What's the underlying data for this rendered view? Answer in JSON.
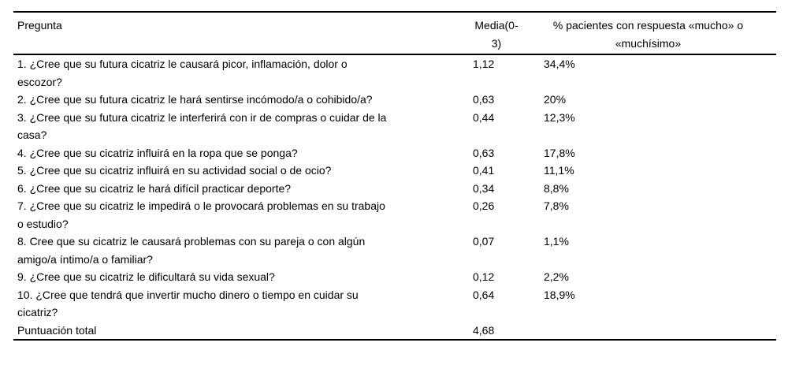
{
  "meta": {
    "background_color": "#ffffff",
    "text_color": "#000000",
    "rule_color": "#000000"
  },
  "table": {
    "columns": [
      {
        "id": "pregunta",
        "label": "Pregunta"
      },
      {
        "id": "media",
        "label": "Media(0-3)"
      },
      {
        "id": "pct_mucho",
        "label": "% pacientes con respuesta «mucho» o «muchísimo»"
      }
    ],
    "rows": [
      {
        "pregunta_lines": [
          "1. ¿Cree que su futura cicatriz le causará picor, inflamación, dolor o",
          "escozor?"
        ],
        "media": "1,12",
        "pct": "34,4%"
      },
      {
        "pregunta_lines": [
          "2. ¿Cree que su futura cicatriz le hará sentirse incómodo/a o cohibido/a?"
        ],
        "media": "0,63",
        "pct": "20%"
      },
      {
        "pregunta_lines": [
          "3. ¿Cree que su futura cicatriz le interferirá con ir de compras o cuidar de la",
          "casa?"
        ],
        "media": "0,44",
        "pct": "12,3%"
      },
      {
        "pregunta_lines": [
          "4. ¿Cree que su cicatriz influirá en la ropa que se ponga?"
        ],
        "media": "0,63",
        "pct": "17,8%"
      },
      {
        "pregunta_lines": [
          "5. ¿Cree que su cicatriz influirá en su actividad social o de ocio?"
        ],
        "media": "0,41",
        "pct": "11,1%"
      },
      {
        "pregunta_lines": [
          "6. ¿Cree que su cicatriz le hará difícil practicar deporte?"
        ],
        "media": "0,34",
        "pct": "8,8%"
      },
      {
        "pregunta_lines": [
          "7. ¿Cree que su cicatriz le impedirá o le provocará problemas en su trabajo",
          "o estudio?"
        ],
        "media": "0,26",
        "pct": "7,8%"
      },
      {
        "pregunta_lines": [
          "8. Cree que su cicatriz le causará problemas con su pareja o con algún",
          "amigo/a íntimo/a o familiar?"
        ],
        "media": "0,07",
        "pct": "1,1%"
      },
      {
        "pregunta_lines": [
          "9. ¿Cree que su cicatriz le dificultará su vida sexual?"
        ],
        "media": "0,12",
        "pct": "2,2%"
      },
      {
        "pregunta_lines": [
          "10. ¿Cree que tendrá que invertir mucho dinero o tiempo en cuidar su",
          "cicatriz?"
        ],
        "media": "0,64",
        "pct": "18,9%"
      },
      {
        "pregunta_lines": [
          "Puntuación total"
        ],
        "media": "4,68",
        "pct": ""
      }
    ]
  }
}
